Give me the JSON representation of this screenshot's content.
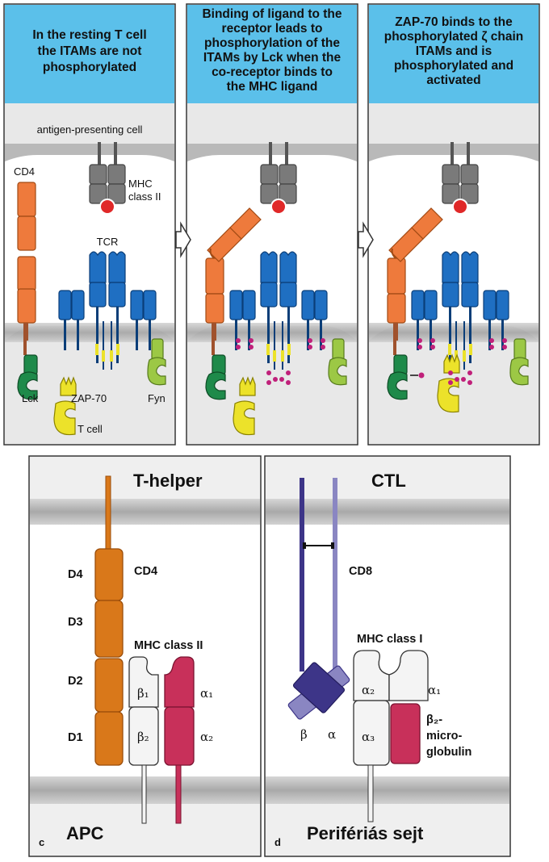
{
  "panels": [
    {
      "header": [
        "In the resting T cell",
        "the ITAMs are not",
        "phosphorylated"
      ]
    },
    {
      "header": [
        "Binding of ligand to the",
        "receptor leads to",
        "phosphorylation of the",
        "ITAMs by Lck when the",
        "co-receptor binds to",
        "the MHC ligand"
      ]
    },
    {
      "header": [
        "ZAP-70 binds to the",
        "phosphorylated ζ chain",
        "ITAMs and is",
        "phosphorylated and",
        "activated"
      ]
    }
  ],
  "labels": {
    "apc": "antigen-presenting cell",
    "cd4": "CD4",
    "mhc_line1": "MHC",
    "mhc_line2": "class II",
    "tcr": "TCR",
    "lck": "Lck",
    "zap70": "ZAP-70",
    "fyn": "Fyn",
    "tcell": "T cell"
  },
  "panel_c": {
    "top_label": "T-helper",
    "bottom_label": "APC",
    "letter": "c",
    "cd4": "CD4",
    "mhc": "MHC class II",
    "domains": [
      "D4",
      "D3",
      "D2",
      "D1"
    ],
    "beta1": "β₁",
    "beta2": "β₂",
    "alpha1": "α₁",
    "alpha2": "α₂"
  },
  "panel_d": {
    "top_label": "CTL",
    "bottom_label": "Perifériás sejt",
    "letter": "d",
    "cd8": "CD8",
    "mhc": "MHC class I",
    "beta": "β",
    "alpha": "α",
    "alpha1": "α₁",
    "alpha2": "α₂",
    "alpha3": "α₃",
    "b2m": [
      "β₂-",
      "micro-",
      "globulin"
    ]
  },
  "colors": {
    "header_bg": "#5bc0ea",
    "membrane": "#b9b9b9",
    "cell_bg": "#e8e8e8",
    "cd4_orange": "#ee7a3c",
    "mhc_gray": "#777777",
    "tcr_blue": "#1f6fc2",
    "lck_green": "#1e8a4a",
    "zap_yellow": "#ece22a",
    "fyn_green": "#9cc845",
    "phospho": "#c0207a",
    "antigen_red": "#e02828",
    "cd4_dark_orange": "#d9781a",
    "mhc2_alpha": "#c8305a",
    "cd8_dark": "#3d3588",
    "cd8_light": "#8a86c2"
  }
}
